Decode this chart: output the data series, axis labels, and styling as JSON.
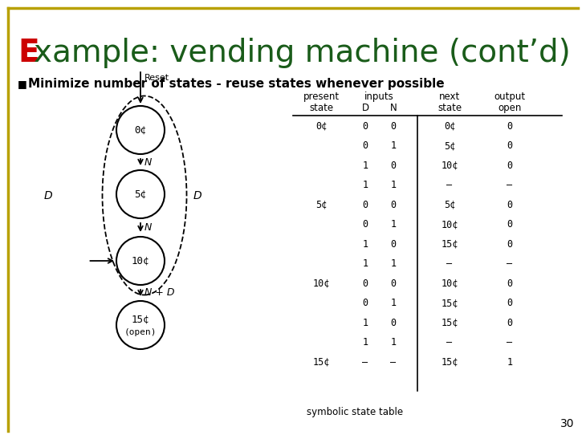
{
  "title_prefix": "E",
  "title_rest": "xample: vending machine (cont’d)",
  "title_prefix_color": "#cc0000",
  "title_rest_color": "#1a5c1a",
  "bullet_text": "Minimize number of states - reuse states whenever possible",
  "background_color": "#ffffff",
  "border_color": "#b8a000",
  "slide_number": "30",
  "table_rows": [
    [
      "0¢",
      "0",
      "0",
      "0¢",
      "0"
    ],
    [
      "",
      "0",
      "1",
      "5¢",
      "0"
    ],
    [
      "",
      "1",
      "0",
      "10¢",
      "0"
    ],
    [
      "",
      "1",
      "1",
      "–",
      "–"
    ],
    [
      "5¢",
      "0",
      "0",
      "5¢",
      "0"
    ],
    [
      "",
      "0",
      "1",
      "10¢",
      "0"
    ],
    [
      "",
      "1",
      "0",
      "15¢",
      "0"
    ],
    [
      "",
      "1",
      "1",
      "–",
      "–"
    ],
    [
      "10¢",
      "0",
      "0",
      "10¢",
      "0"
    ],
    [
      "",
      "0",
      "1",
      "15¢",
      "0"
    ],
    [
      "",
      "1",
      "0",
      "15¢",
      "0"
    ],
    [
      "",
      "1",
      "1",
      "–",
      "–"
    ],
    [
      "15¢",
      "–",
      "–",
      "15¢",
      "1"
    ]
  ],
  "symbolic_state_table_text": "symbolic state table"
}
